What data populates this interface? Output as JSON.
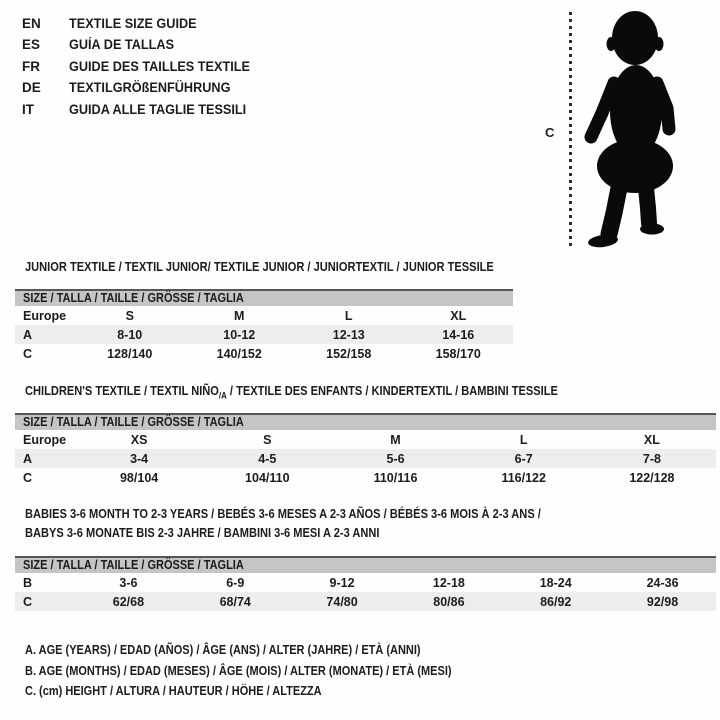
{
  "colors": {
    "text": "#1c1c1c",
    "header_bar_bg": "#c5c5c5",
    "header_bar_border": "#565656",
    "alt_row_bg": "#ededed",
    "silhouette": "#0a0a0a",
    "page_bg": "#fefefe"
  },
  "language_guide": {
    "items": [
      {
        "code": "EN",
        "label": "TEXTILE SIZE GUIDE"
      },
      {
        "code": "ES",
        "label": "GUÍA DE TALLAS"
      },
      {
        "code": "FR",
        "label": "GUIDE DES TAILLES TEXTILE"
      },
      {
        "code": "DE",
        "label": "TEXTILGRÖßENFÜHRUNG"
      },
      {
        "code": "IT",
        "label": "GUIDA ALLE TAGLIE TESSILI"
      }
    ]
  },
  "figure": {
    "measure_label": "C",
    "icon": "toddler-silhouette"
  },
  "sections": [
    {
      "id": "junior",
      "title_lines": [
        [
          {
            "t": "JUNIOR TEXTILE / TEXTIL JUNIOR/ TEXTILE JUNIOR / JUNIORTEXTIL / JUNIOR TESSILE"
          }
        ]
      ],
      "size_header": "SIZE / TALLA / TAILLE / GRÖSSE / TAGLIA",
      "rows": [
        {
          "label": "Europe",
          "cells": [
            "S",
            "M",
            "L",
            "XL"
          ],
          "shaded": false
        },
        {
          "label": "A",
          "cells": [
            "8-10",
            "10-12",
            "12-13",
            "14-16"
          ],
          "shaded": true
        },
        {
          "label": "C",
          "cells": [
            "128/140",
            "140/152",
            "152/158",
            "158/170"
          ],
          "shaded": false
        }
      ]
    },
    {
      "id": "children",
      "title_lines": [
        [
          {
            "t": "CHILDREN'S TEXTILE / TEXTIL NIÑO"
          },
          {
            "t": "/A",
            "sub": true
          },
          {
            "t": " / TEXTILE DES ENFANTS / KINDERTEXTIL / BAMBINI TESSILE"
          }
        ]
      ],
      "size_header": "SIZE / TALLA / TAILLE / GRÖSSE / TAGLIA",
      "rows": [
        {
          "label": "Europe",
          "cells": [
            "XS",
            "S",
            "M",
            "L",
            "XL"
          ],
          "shaded": false
        },
        {
          "label": "A",
          "cells": [
            "3-4",
            "4-5",
            "5-6",
            "6-7",
            "7-8"
          ],
          "shaded": true
        },
        {
          "label": "C",
          "cells": [
            "98/104",
            "104/110",
            "110/116",
            "116/122",
            "122/128"
          ],
          "shaded": false
        }
      ]
    },
    {
      "id": "babies",
      "title_lines": [
        [
          {
            "t": "BABIES 3-6 MONTH TO 2-3 YEARS / BEBÉS 3-6 MESES A 2-3 AÑOS / BÉBÉS 3-6 MOIS À 2-3 ANS /"
          }
        ],
        [
          {
            "t": "BABYS 3-6 MONATE BIS 2-3 JAHRE / BAMBINI 3-6 MESI A 2-3 ANNI"
          }
        ]
      ],
      "size_header": "SIZE / TALLA / TAILLE / GRÖSSE / TAGLIA",
      "rows": [
        {
          "label": "B",
          "cells": [
            "3-6",
            "6-9",
            "9-12",
            "12-18",
            "18-24",
            "24-36"
          ],
          "shaded": false
        },
        {
          "label": "C",
          "cells": [
            "62/68",
            "68/74",
            "74/80",
            "80/86",
            "86/92",
            "92/98"
          ],
          "shaded": true
        }
      ]
    }
  ],
  "footnotes": [
    "A. AGE (YEARS) / EDAD (AÑOS) / ÂGE (ANS) / ALTER (JAHRE) / ETÀ (ANNI)",
    "B. AGE (MONTHS) / EDAD (MESES) / ÂGE (MOIS) / ALTER (MONATE) / ETÀ (MESI)",
    "C. (cm) HEIGHT / ALTURA / HAUTEUR / HÖHE / ALTEZZA"
  ]
}
